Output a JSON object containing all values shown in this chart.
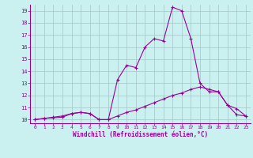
{
  "title": "",
  "xlabel": "Windchill (Refroidissement éolien,°C)",
  "background_color": "#caf0f0",
  "line_color": "#990099",
  "grid_color": "#aacccc",
  "x_data": [
    0,
    1,
    2,
    3,
    4,
    5,
    6,
    7,
    8,
    9,
    10,
    11,
    12,
    13,
    14,
    15,
    16,
    17,
    18,
    19,
    20,
    21,
    22,
    23
  ],
  "y_curve1": [
    10.0,
    10.1,
    10.2,
    10.3,
    10.5,
    10.6,
    10.5,
    10.0,
    10.0,
    13.3,
    14.5,
    14.3,
    16.0,
    16.7,
    16.5,
    19.3,
    19.0,
    16.7,
    13.0,
    12.3,
    12.3,
    11.2,
    10.4,
    10.3
  ],
  "y_curve2": [
    10.0,
    10.1,
    10.15,
    10.2,
    10.5,
    10.6,
    10.5,
    10.0,
    10.0,
    10.3,
    10.6,
    10.8,
    11.1,
    11.4,
    11.7,
    12.0,
    12.2,
    12.5,
    12.7,
    12.5,
    12.3,
    11.2,
    10.9,
    10.3
  ],
  "ylim": [
    10,
    19
  ],
  "xlim": [
    0,
    23
  ],
  "yticks": [
    10,
    11,
    12,
    13,
    14,
    15,
    16,
    17,
    18,
    19
  ],
  "xticks": [
    0,
    1,
    2,
    3,
    4,
    5,
    6,
    7,
    8,
    9,
    10,
    11,
    12,
    13,
    14,
    15,
    16,
    17,
    18,
    19,
    20,
    21,
    22,
    23
  ]
}
